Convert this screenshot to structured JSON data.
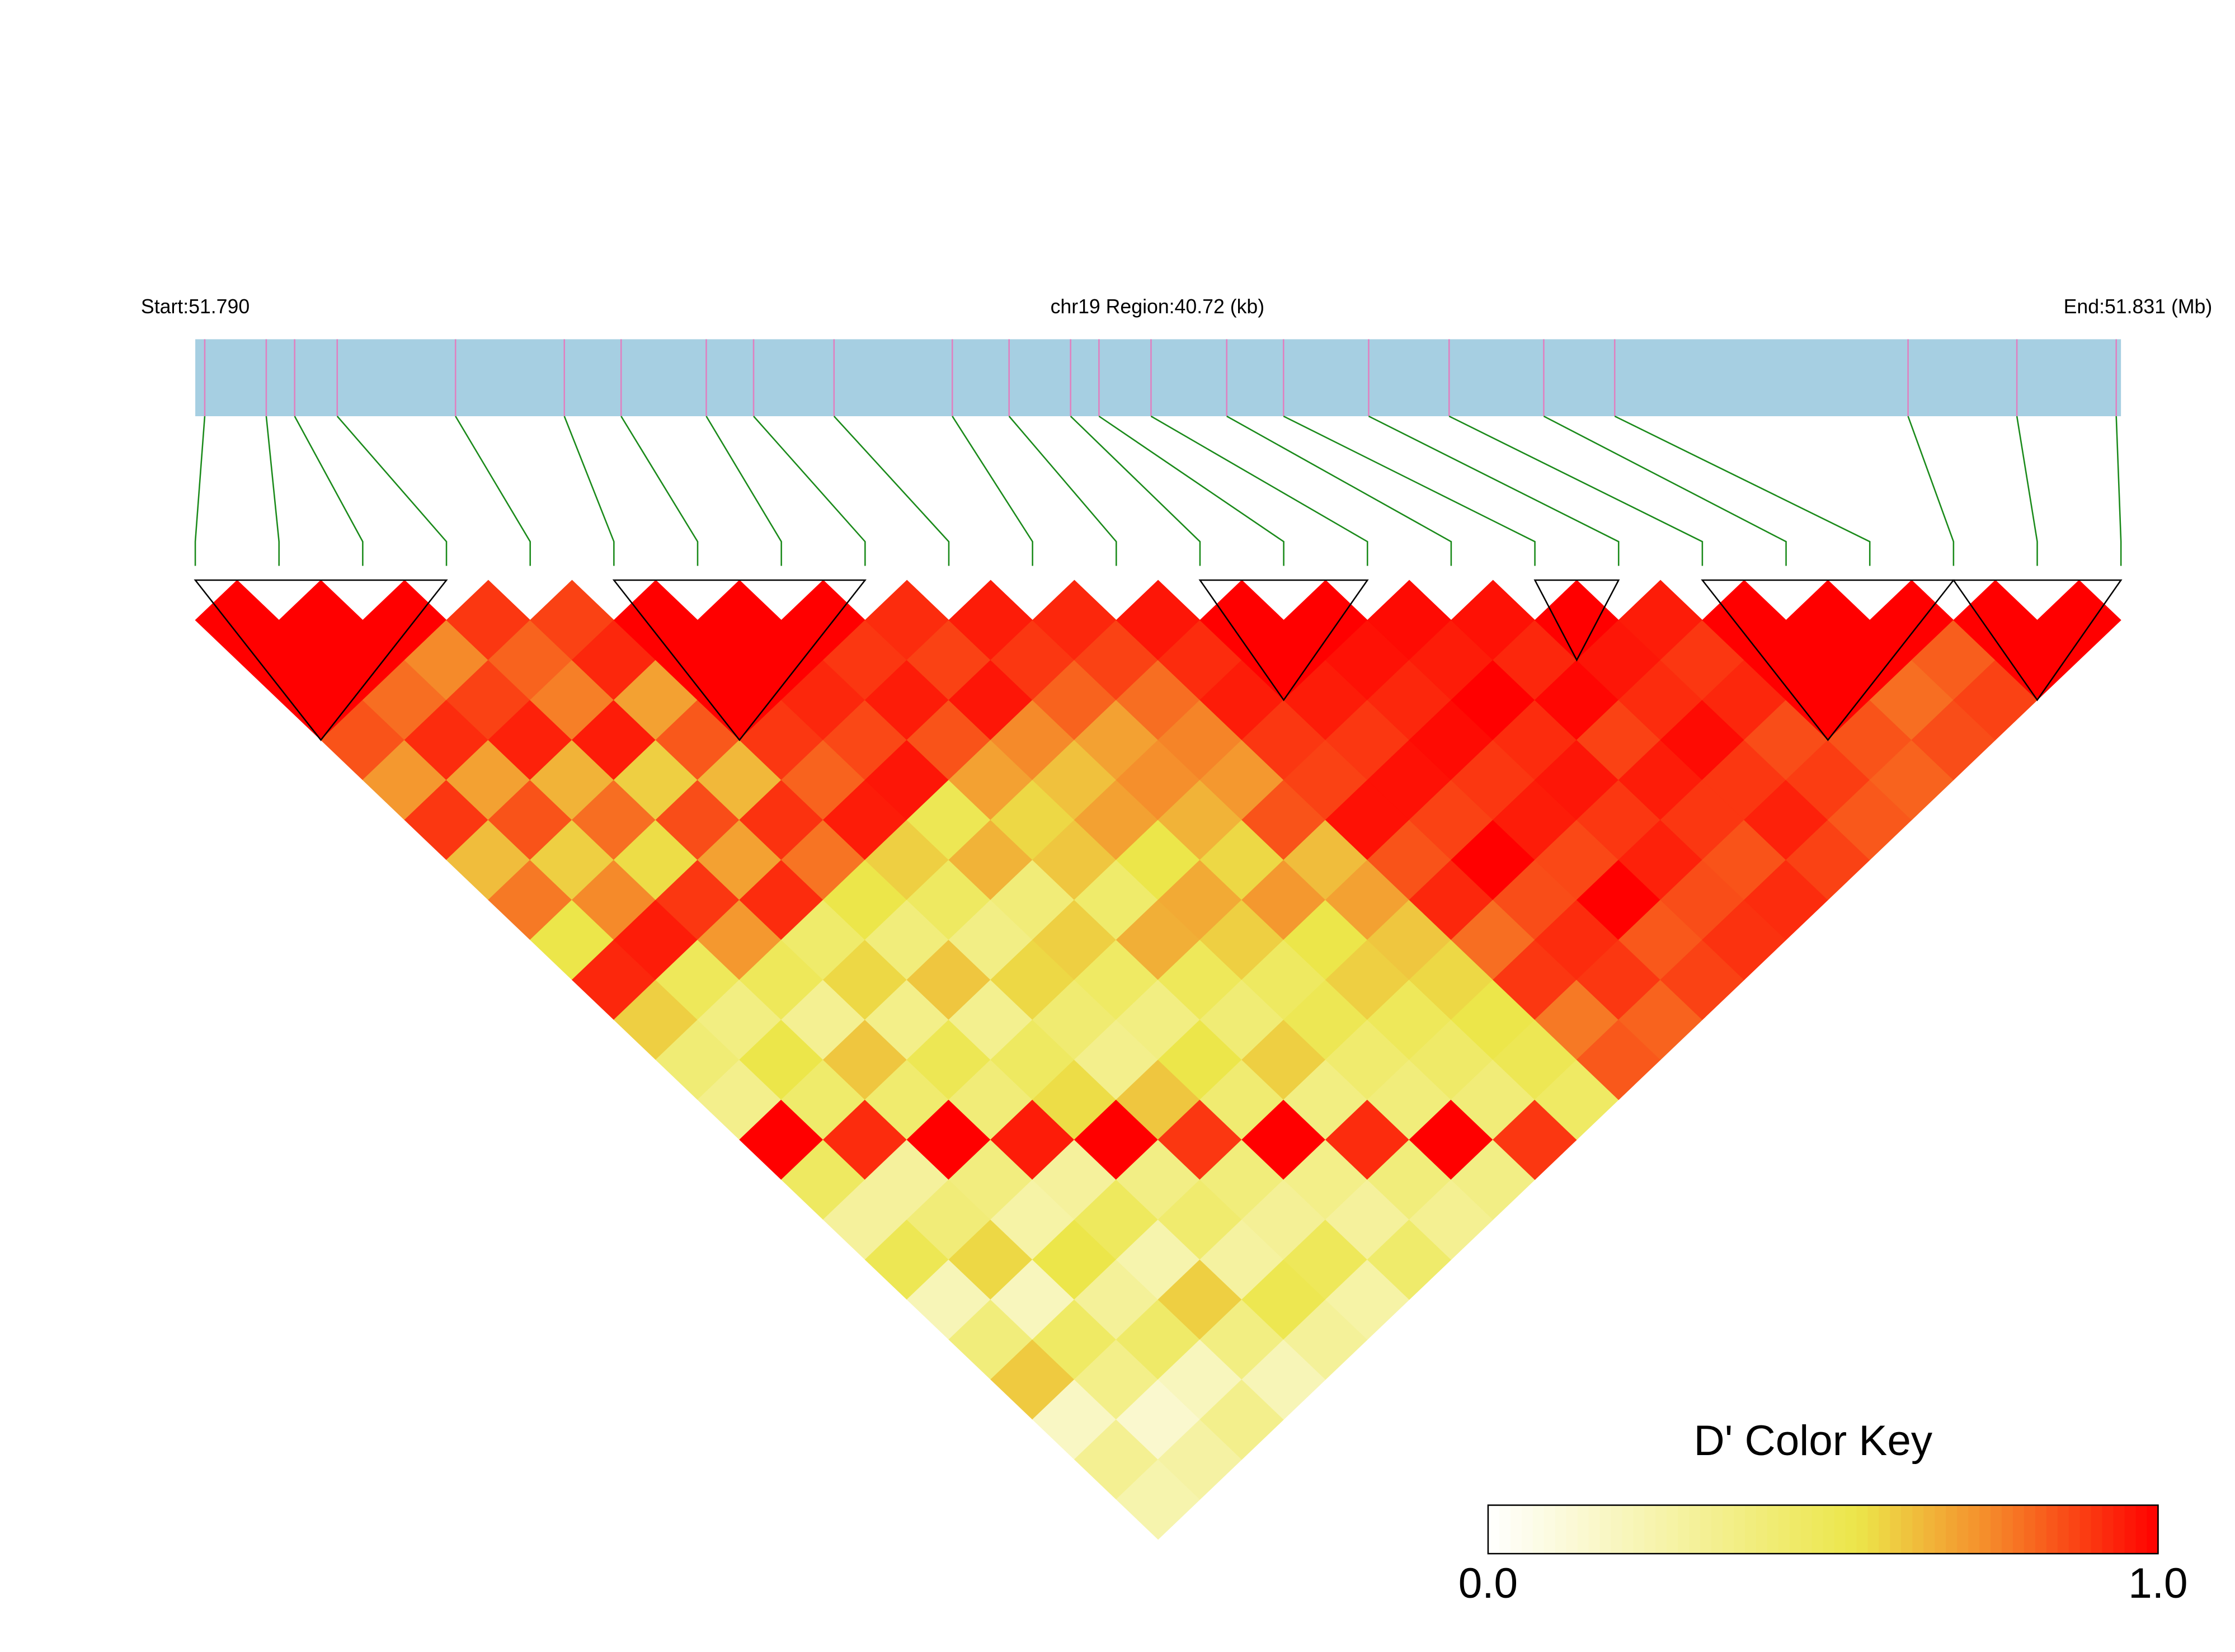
{
  "chart_data": {
    "type": "ld_heatmap",
    "start_label": "Start:51.790",
    "region_label": "chr19 Region:40.72 (kb)",
    "end_label": "End:51.831 (Mb)",
    "xlim": [
      51.79,
      51.8307
    ],
    "positions": [
      51.7902,
      51.7915,
      51.7921,
      51.793,
      51.7955,
      51.7978,
      51.799,
      51.8008,
      51.8018,
      51.8035,
      51.806,
      51.8072,
      51.8085,
      51.8091,
      51.8102,
      51.8118,
      51.813,
      51.8148,
      51.8165,
      51.8185,
      51.82,
      51.8262,
      51.8285,
      51.8306
    ],
    "dprime": [
      [
        1,
        1,
        1,
        0.85,
        0.72,
        0.9,
        0.64,
        0.78,
        0.55,
        0.93,
        0.6,
        0.42,
        0.35,
        1,
        0.48,
        0.3,
        0.52,
        0.22,
        0.4,
        0.61,
        0.18,
        0.33,
        0.25
      ],
      [
        1,
        1,
        0.8,
        0.92,
        0.7,
        0.85,
        0.6,
        0.75,
        0.95,
        0.5,
        0.38,
        0.55,
        0.45,
        0.92,
        0.3,
        0.41,
        0.58,
        0.2,
        0.47,
        0.36,
        0.15,
        0.28
      ],
      [
        1,
        0.75,
        0.88,
        0.94,
        0.66,
        0.8,
        0.57,
        0.9,
        0.72,
        0.5,
        0.33,
        0.62,
        0.44,
        1,
        0.39,
        0.27,
        0.55,
        0.31,
        0.46,
        0.2,
        0.35
      ],
      [
        0.9,
        0.82,
        0.77,
        0.95,
        0.6,
        0.86,
        0.7,
        0.92,
        0.45,
        0.58,
        0.36,
        0.52,
        0.41,
        0.95,
        0.3,
        0.49,
        0.25,
        0.6,
        0.38,
        0.22
      ],
      [
        0.88,
        0.93,
        0.7,
        0.84,
        0.65,
        0.91,
        0.79,
        0.55,
        0.4,
        0.62,
        0.34,
        0.48,
        0.57,
        1,
        0.37,
        0.44,
        0.29,
        0.53,
        0.31
      ],
      [
        1,
        1,
        1,
        0.9,
        0.82,
        0.95,
        0.6,
        0.48,
        0.37,
        0.58,
        0.43,
        0.35,
        0.62,
        0.9,
        0.4,
        0.32,
        0.5,
        0.27
      ],
      [
        1,
        1,
        0.93,
        0.87,
        0.96,
        0.52,
        0.66,
        0.41,
        0.6,
        0.47,
        0.38,
        0.55,
        0.43,
        1,
        0.36,
        0.3,
        0.45
      ],
      [
        1,
        0.9,
        0.95,
        0.85,
        0.7,
        0.58,
        0.62,
        0.45,
        0.67,
        0.5,
        0.42,
        0.6,
        0.38,
        0.92,
        0.4,
        0.33
      ],
      [
        0.92,
        0.88,
        0.96,
        0.75,
        0.63,
        0.7,
        0.55,
        0.68,
        0.6,
        0.48,
        0.52,
        0.44,
        0.4,
        1,
        0.37
      ],
      [
        0.95,
        0.9,
        0.82,
        0.7,
        0.74,
        0.66,
        0.58,
        0.72,
        0.55,
        0.6,
        0.5,
        0.46,
        0.41,
        0.9
      ],
      [
        0.93,
        0.88,
        0.8,
        0.76,
        0.72,
        0.85,
        0.64,
        0.7,
        0.62,
        0.58,
        0.55,
        0.52,
        0.47
      ],
      [
        0.96,
        0.92,
        0.95,
        0.9,
        0.88,
        0.97,
        0.85,
        0.93,
        0.8,
        0.9,
        0.78,
        0.84
      ],
      [
        1,
        1,
        0.95,
        0.9,
        0.97,
        0.88,
        1,
        0.86,
        0.92,
        0.9,
        0.82
      ],
      [
        1,
        0.97,
        0.93,
        0.98,
        0.9,
        0.95,
        0.87,
        1,
        0.84,
        0.88
      ],
      [
        0.98,
        0.95,
        1,
        0.92,
        0.96,
        0.9,
        0.94,
        0.86,
        0.91
      ],
      [
        0.97,
        0.93,
        0.99,
        0.88,
        0.95,
        0.9,
        0.85,
        0.92
      ],
      [
        1,
        0.96,
        0.92,
        0.98,
        0.9,
        0.94,
        0.88
      ],
      [
        0.95,
        0.9,
        0.93,
        0.86,
        0.89,
        0.84
      ],
      [
        1,
        1,
        1,
        0.85,
        0.82
      ],
      [
        1,
        1,
        0.8,
        0.86
      ],
      [
        1,
        0.83,
        0.88
      ],
      [
        1,
        1
      ],
      [
        1
      ]
    ],
    "blocks": [
      [
        0,
        3
      ],
      [
        5,
        8
      ],
      [
        12,
        14
      ],
      [
        16,
        17
      ],
      [
        18,
        21
      ],
      [
        21,
        23
      ]
    ],
    "colorscale": [
      [
        0,
        "#ffffff"
      ],
      [
        0.55,
        "#ece64a"
      ],
      [
        0.75,
        "#f58a2a"
      ],
      [
        1,
        "#ff0000"
      ]
    ],
    "colorbar_title": "D' Color Key",
    "colorbar_ticks": [
      {
        "value": 0,
        "label": "0.0"
      },
      {
        "value": 1,
        "label": "1.0"
      }
    ],
    "bar_color": "#a6cfe2",
    "snp_color": "#e080c0",
    "connector_color": "#1a8a1a"
  }
}
